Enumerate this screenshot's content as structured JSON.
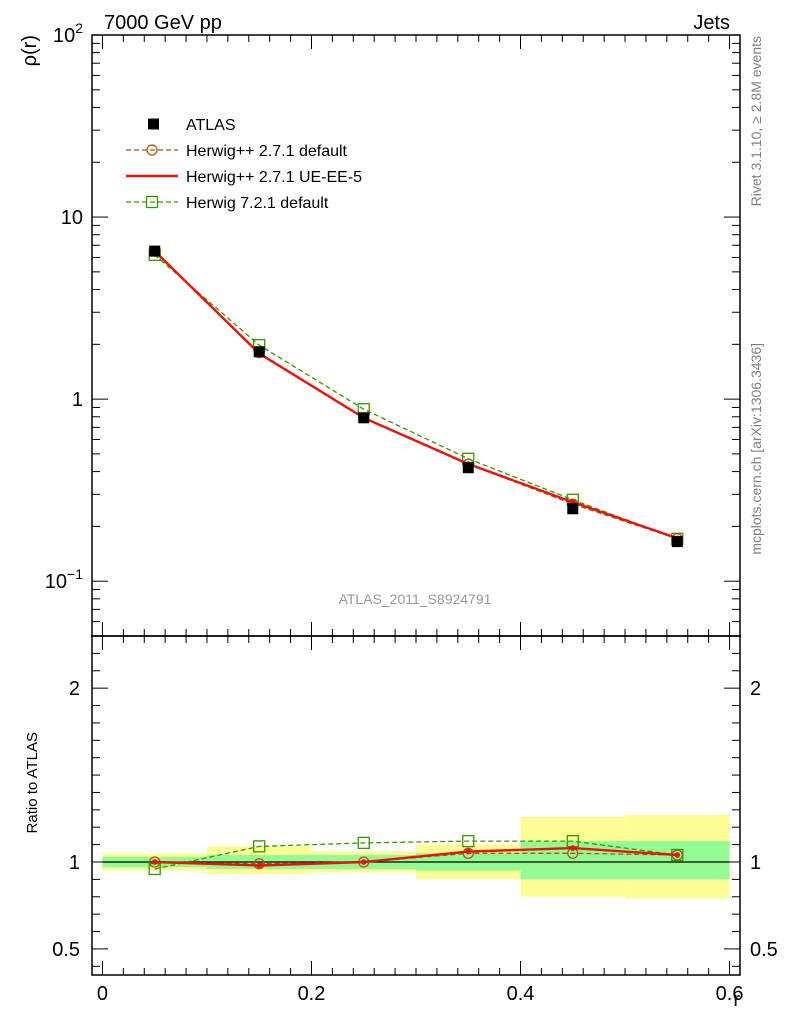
{
  "chart_data": {
    "type": "line",
    "header_left": "7000 GeV pp",
    "header_right": "Jets",
    "watermark": "ATLAS_2011_S8924791",
    "side_text_top": "Rivet 3.1.10, ≥ 2.8M events",
    "side_text_bottom": "mcplots.cern.ch [arXiv:1306.3436]",
    "xlabel": "r",
    "ylabel": "ρ(r)",
    "ratio_ylabel": "Ratio to ATLAS",
    "xlim": [
      -0.01,
      0.61
    ],
    "ylim_log": [
      0.05,
      100
    ],
    "ratio_ylim": [
      0.35,
      2.3
    ],
    "x_ticks": [
      {
        "v": 0,
        "label": "0"
      },
      {
        "v": 0.2,
        "label": "0.2"
      },
      {
        "v": 0.4,
        "label": "0.4"
      },
      {
        "v": 0.6,
        "label": "0.6"
      }
    ],
    "y_ticks": [
      {
        "v": 0.1,
        "base": "10",
        "exp": "−1"
      },
      {
        "v": 1,
        "base": "1",
        "exp": ""
      },
      {
        "v": 10,
        "base": "10",
        "exp": ""
      },
      {
        "v": 100,
        "base": "10",
        "exp": "2"
      }
    ],
    "ratio_ticks": [
      {
        "v": 0.5,
        "label": "0.5"
      },
      {
        "v": 1,
        "label": "1"
      },
      {
        "v": 2,
        "label": "2"
      }
    ],
    "bins": [
      [
        0.0,
        0.1
      ],
      [
        0.1,
        0.2
      ],
      [
        0.2,
        0.3
      ],
      [
        0.3,
        0.4
      ],
      [
        0.4,
        0.5
      ],
      [
        0.5,
        0.6
      ]
    ],
    "x": [
      0.05,
      0.15,
      0.25,
      0.35,
      0.45,
      0.55
    ],
    "data": {
      "name": "ATLAS",
      "values": [
        6.5,
        1.82,
        0.79,
        0.42,
        0.25,
        0.165
      ]
    },
    "band_inner": [
      [
        0.97,
        1.03
      ],
      [
        0.96,
        1.04
      ],
      [
        0.96,
        1.04
      ],
      [
        0.95,
        1.05
      ],
      [
        0.9,
        1.12
      ],
      [
        0.9,
        1.12
      ]
    ],
    "band_outer": [
      [
        0.95,
        1.05
      ],
      [
        0.93,
        1.09
      ],
      [
        0.94,
        1.06
      ],
      [
        0.9,
        1.1
      ],
      [
        0.8,
        1.26
      ],
      [
        0.79,
        1.27
      ]
    ],
    "series": [
      {
        "name": "Herwig++ 2.7.1 default",
        "color": "#a8580a",
        "style": "dashed",
        "marker": "circle",
        "values": [
          6.5,
          1.8,
          0.79,
          0.44,
          0.265,
          0.171
        ],
        "ratio": [
          1.0,
          0.99,
          1.0,
          1.05,
          1.05,
          1.04
        ]
      },
      {
        "name": "Herwig++ 2.7.1 UE-EE-5",
        "color": "#e8140c",
        "style": "solid",
        "marker": "dot",
        "values": [
          6.5,
          1.78,
          0.79,
          0.44,
          0.272,
          0.172
        ],
        "ratio": [
          1.0,
          0.98,
          1.0,
          1.06,
          1.08,
          1.04
        ]
      },
      {
        "name": "Herwig 7.2.1 default",
        "color": "#3a9600",
        "style": "dashed",
        "marker": "square",
        "values": [
          6.2,
          1.98,
          0.88,
          0.47,
          0.28,
          0.171
        ],
        "ratio": [
          0.96,
          1.09,
          1.11,
          1.12,
          1.12,
          1.04
        ]
      }
    ],
    "colors": {
      "band_inner": "#94fa94",
      "band_outer": "#fdfd96",
      "data": "#000000",
      "watermark": "#999999",
      "side_text": "#808080"
    }
  }
}
